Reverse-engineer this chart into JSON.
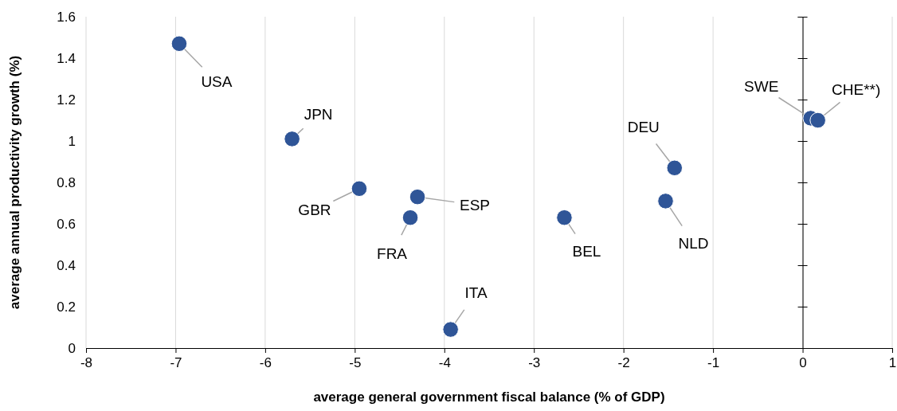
{
  "chart_data": {
    "type": "scatter",
    "xlabel": "average general government fiscal balance (% of GDP)",
    "ylabel": "average annual productivity growth (%)",
    "x": [
      -6.96,
      -5.7,
      -4.95,
      -4.3,
      -4.38,
      -3.93,
      -2.66,
      -1.43,
      -1.53,
      0.09,
      0.17
    ],
    "series": [
      {
        "color": "#2f5597",
        "values": [
          1.47,
          1.01,
          0.77,
          0.73,
          0.63,
          0.09,
          0.63,
          0.87,
          0.71,
          1.11,
          1.1
        ]
      }
    ],
    "annotations": [
      {
        "text": "USA",
        "x": -6.96,
        "y": 1.47
      },
      {
        "text": "JPN",
        "x": -5.7,
        "y": 1.01
      },
      {
        "text": "GBR",
        "x": -4.95,
        "y": 0.77
      },
      {
        "text": "ESP",
        "x": -4.3,
        "y": 0.73
      },
      {
        "text": "FRA",
        "x": -4.38,
        "y": 0.63
      },
      {
        "text": "ITA",
        "x": -3.93,
        "y": 0.09
      },
      {
        "text": "BEL",
        "x": -2.66,
        "y": 0.63
      },
      {
        "text": "DEU",
        "x": -1.43,
        "y": 0.87
      },
      {
        "text": "NLD",
        "x": -1.53,
        "y": 0.71
      },
      {
        "text": "SWE",
        "x": 0.09,
        "y": 1.11
      },
      {
        "text": "CHE**)",
        "x": 0.17,
        "y": 1.1
      }
    ],
    "xlim": [
      -8,
      1
    ],
    "xticks": [
      -8,
      -7,
      -6,
      -5,
      -4,
      -3,
      -2,
      -1,
      0,
      1
    ],
    "ylim": [
      0,
      1.6
    ],
    "yticks": [
      0,
      0.2,
      0.4,
      0.6,
      0.8,
      1,
      1.2,
      1.4,
      1.6
    ],
    "grid": "x",
    "marker": "circle"
  }
}
